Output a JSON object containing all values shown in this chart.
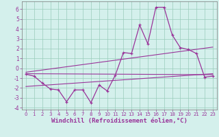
{
  "xlabel": "Windchill (Refroidissement éolien,°C)",
  "xlim": [
    -0.5,
    23.5
  ],
  "ylim": [
    -4.2,
    6.8
  ],
  "yticks": [
    -4,
    -3,
    -2,
    -1,
    0,
    1,
    2,
    3,
    4,
    5,
    6
  ],
  "xticks": [
    0,
    1,
    2,
    3,
    4,
    5,
    6,
    7,
    8,
    9,
    10,
    11,
    12,
    13,
    14,
    15,
    16,
    17,
    18,
    19,
    20,
    21,
    22,
    23
  ],
  "main_x": [
    0,
    1,
    2,
    3,
    4,
    5,
    6,
    7,
    8,
    9,
    10,
    11,
    12,
    13,
    14,
    15,
    16,
    17,
    18,
    19,
    20,
    21,
    22,
    23
  ],
  "main_y": [
    -0.6,
    -0.8,
    -1.5,
    -2.1,
    -2.2,
    -3.4,
    -2.2,
    -2.2,
    -3.5,
    -1.7,
    -2.3,
    -0.7,
    1.6,
    1.5,
    4.4,
    2.5,
    6.2,
    6.2,
    3.4,
    2.1,
    1.9,
    1.5,
    -0.9,
    -0.8
  ],
  "line1_x": [
    0,
    23
  ],
  "line1_y": [
    -0.55,
    -0.65
  ],
  "line2_x": [
    0,
    23
  ],
  "line2_y": [
    -1.85,
    -0.55
  ],
  "line3_x": [
    0,
    23
  ],
  "line3_y": [
    -0.4,
    2.15
  ],
  "color": "#993399",
  "bg_color": "#d4f0ec",
  "grid_color": "#99ccbb",
  "tick_color": "#993399",
  "label_color": "#993399",
  "spine_color": "#777777"
}
